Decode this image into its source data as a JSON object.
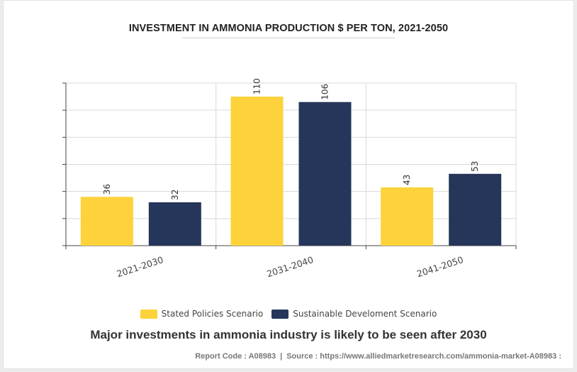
{
  "chart_data": {
    "type": "bar",
    "title": "INVESTMENT IN AMMONIA PRODUCTION $ PER TON, 2021-2050",
    "categories": [
      "2021-2030",
      "2031-2040",
      "2041-2050"
    ],
    "series": [
      {
        "name": "Stated Policies Scenario",
        "color": "#FDD23A",
        "values": [
          36,
          110,
          43
        ]
      },
      {
        "name": "Sustainable Develoment Scenario",
        "color": "#25365A",
        "values": [
          32,
          106,
          53
        ]
      }
    ],
    "ylim": [
      0,
      120
    ],
    "xlabel": "",
    "ylabel": "",
    "grid": true,
    "legend_position": "bottom"
  },
  "caption": "Major investments in ammonia industry is likely to be seen after 2030",
  "source": {
    "report_code": "Report Code : A08983",
    "separator": "|",
    "source_text": "Source : https://www.alliedmarketresearch.com/ammonia-market-A08983 :"
  }
}
